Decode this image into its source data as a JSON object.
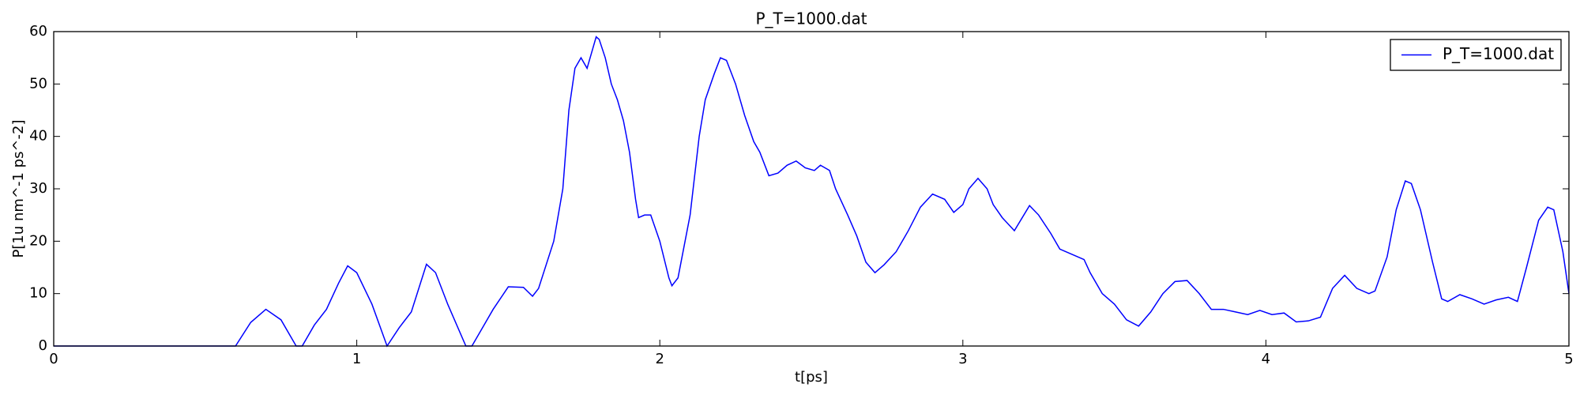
{
  "chart_data": {
    "type": "line",
    "title": "P_T=1000.dat",
    "xlabel": "t[ps]",
    "ylabel": "P[1u nm^-1 ps^-2]",
    "x": [
      0,
      0.3,
      0.6,
      0.65,
      0.7,
      0.75,
      0.8,
      0.82,
      0.86,
      0.9,
      0.94,
      0.97,
      1.0,
      1.05,
      1.1,
      1.14,
      1.18,
      1.23,
      1.26,
      1.3,
      1.36,
      1.38,
      1.42,
      1.45,
      1.5,
      1.55,
      1.58,
      1.6,
      1.65,
      1.68,
      1.7,
      1.72,
      1.74,
      1.76,
      1.78,
      1.79,
      1.8,
      1.82,
      1.84,
      1.86,
      1.88,
      1.9,
      1.92,
      1.93,
      1.95,
      1.97,
      2.0,
      2.03,
      2.04,
      2.06,
      2.1,
      2.13,
      2.15,
      2.18,
      2.2,
      2.22,
      2.25,
      2.28,
      2.31,
      2.33,
      2.36,
      2.39,
      2.42,
      2.45,
      2.48,
      2.51,
      2.53,
      2.56,
      2.58,
      2.62,
      2.65,
      2.68,
      2.71,
      2.74,
      2.78,
      2.82,
      2.86,
      2.9,
      2.94,
      2.97,
      3.0,
      3.02,
      3.05,
      3.08,
      3.1,
      3.13,
      3.17,
      3.22,
      3.25,
      3.29,
      3.32,
      3.36,
      3.4,
      3.42,
      3.46,
      3.5,
      3.54,
      3.58,
      3.62,
      3.66,
      3.7,
      3.74,
      3.78,
      3.82,
      3.86,
      3.9,
      3.94,
      3.98,
      4.02,
      4.06,
      4.1,
      4.14,
      4.18,
      4.22,
      4.26,
      4.3,
      4.34,
      4.36,
      4.4,
      4.43,
      4.46,
      4.48,
      4.51,
      4.55,
      4.58,
      4.6,
      4.64,
      4.68,
      4.72,
      4.76,
      4.8,
      4.83,
      4.86,
      4.9,
      4.93,
      4.95,
      4.98,
      5.0
    ],
    "series": [
      {
        "name": "P_T=1000.dat",
        "color": "#0000ff",
        "values": [
          0,
          0,
          0,
          4.5,
          7,
          5,
          0,
          0,
          4,
          7,
          12,
          15.3,
          14,
          8,
          0,
          3.5,
          6.5,
          15.6,
          14,
          8,
          0,
          0,
          4,
          7,
          11.3,
          11.2,
          9.5,
          11,
          20,
          30,
          45,
          53,
          55,
          53,
          57,
          59,
          58.5,
          55,
          50,
          47,
          43,
          37,
          28,
          24.5,
          25,
          25,
          20,
          13,
          11.5,
          13,
          25,
          40,
          47,
          52,
          55,
          54.5,
          50,
          44,
          39,
          37,
          32.5,
          33,
          34.5,
          35.3,
          34,
          33.5,
          34.5,
          33.5,
          30,
          25,
          21,
          16,
          14,
          15.5,
          18,
          22,
          26.5,
          29,
          28,
          25.5,
          27,
          30,
          32,
          30,
          27,
          24.5,
          22,
          26.8,
          25,
          21.5,
          18.5,
          17.5,
          16.5,
          14,
          10,
          8,
          5,
          3.8,
          6.5,
          10,
          12.3,
          12.5,
          10,
          7,
          7,
          6.5,
          6,
          6.8,
          6,
          6.3,
          4.6,
          4.8,
          5.5,
          11,
          13.5,
          11,
          10,
          10.5,
          17,
          26,
          31.5,
          31,
          26,
          16,
          9,
          8.5,
          9.8,
          9,
          8,
          8.8,
          9.3,
          8.5,
          15,
          24,
          26.5,
          26,
          18,
          10
        ]
      }
    ],
    "xlim": [
      0,
      5
    ],
    "ylim": [
      0,
      60
    ],
    "xticks": [
      0,
      1,
      2,
      3,
      4,
      5
    ],
    "yticks": [
      0,
      10,
      20,
      30,
      40,
      50,
      60
    ],
    "legend": "upper right"
  }
}
